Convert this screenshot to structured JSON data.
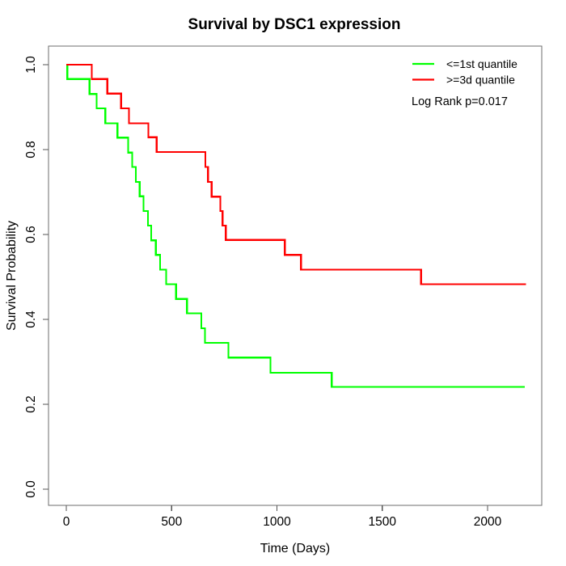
{
  "figure": {
    "background": "#ffffff"
  },
  "chart_data": {
    "type": "line",
    "subtype": "kaplan_meier_step",
    "title": "Survival by DSC1 expression",
    "xlabel": "Time (Days)",
    "ylabel": "Survival Probability",
    "xlim": [
      -84.5,
      2257
    ],
    "ylim": [
      -0.0381,
      1.0438
    ],
    "x_ticks": [
      0,
      500,
      1000,
      1500,
      2000
    ],
    "x_tick_labels": [
      "0",
      "500",
      "1000",
      "1500",
      "2000"
    ],
    "y_ticks": [
      0.0,
      0.2,
      0.4,
      0.6,
      0.8,
      1.0
    ],
    "y_tick_labels": [
      "0.0",
      "0.2",
      "0.4",
      "0.6",
      "0.8",
      "1.0"
    ],
    "grid": false,
    "legend_position": "top-right",
    "annotation": "Log Rank p=0.017",
    "axis_color": "#6e6e6e",
    "tick_color": "#555555",
    "text_color": "#000000",
    "series": [
      {
        "name": "<=1st quantile",
        "color": "#00ff00",
        "end_time": 2177,
        "points": [
          [
            0,
            1.0
          ],
          [
            5,
            0.966
          ],
          [
            110,
            0.931
          ],
          [
            144,
            0.897
          ],
          [
            185,
            0.862
          ],
          [
            243,
            0.828
          ],
          [
            294,
            0.793
          ],
          [
            313,
            0.759
          ],
          [
            330,
            0.724
          ],
          [
            348,
            0.69
          ],
          [
            367,
            0.655
          ],
          [
            388,
            0.621
          ],
          [
            403,
            0.586
          ],
          [
            425,
            0.552
          ],
          [
            445,
            0.517
          ],
          [
            474,
            0.483
          ],
          [
            521,
            0.448
          ],
          [
            573,
            0.414
          ],
          [
            641,
            0.379
          ],
          [
            658,
            0.345
          ],
          [
            770,
            0.31
          ],
          [
            969,
            0.274
          ],
          [
            1260,
            0.241
          ]
        ]
      },
      {
        "name": ">=3d quantile",
        "color": "#ff0000",
        "end_time": 2183,
        "points": [
          [
            0,
            1.0
          ],
          [
            121,
            0.966
          ],
          [
            195,
            0.932
          ],
          [
            260,
            0.897
          ],
          [
            298,
            0.862
          ],
          [
            390,
            0.829
          ],
          [
            429,
            0.794
          ],
          [
            660,
            0.759
          ],
          [
            673,
            0.724
          ],
          [
            690,
            0.689
          ],
          [
            731,
            0.655
          ],
          [
            742,
            0.621
          ],
          [
            757,
            0.587
          ],
          [
            1037,
            0.552
          ],
          [
            1114,
            0.517
          ],
          [
            1684,
            0.483
          ]
        ]
      }
    ]
  }
}
